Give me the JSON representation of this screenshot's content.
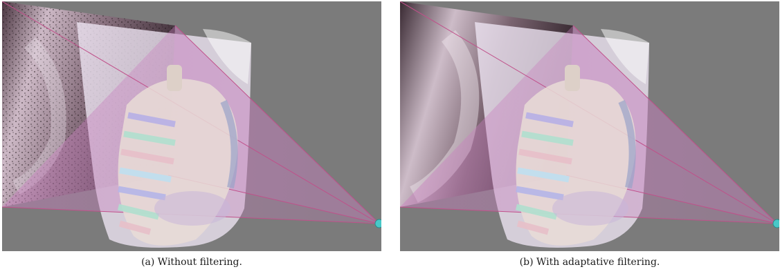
{
  "figure": {
    "panels": [
      {
        "id": "a",
        "caption": "(a) Without filtering.",
        "filtering": "none"
      },
      {
        "id": "b",
        "caption": "(b) With adaptative filtering.",
        "filtering": "adaptive"
      }
    ],
    "colors": {
      "background": "#7b7b7b",
      "projection_frustum": "#c97fbf",
      "frustum_line": "#c0508a",
      "body_surface": "#eee6f4",
      "xray_dark": "#3a2a33",
      "xray_light": "#efe6ee",
      "source_sphere": "#48c8c8",
      "rib_colors": [
        "#b7b0e6",
        "#b0e0cf",
        "#e8c0c9",
        "#bfe0f0",
        "#b5b5e8"
      ]
    }
  }
}
